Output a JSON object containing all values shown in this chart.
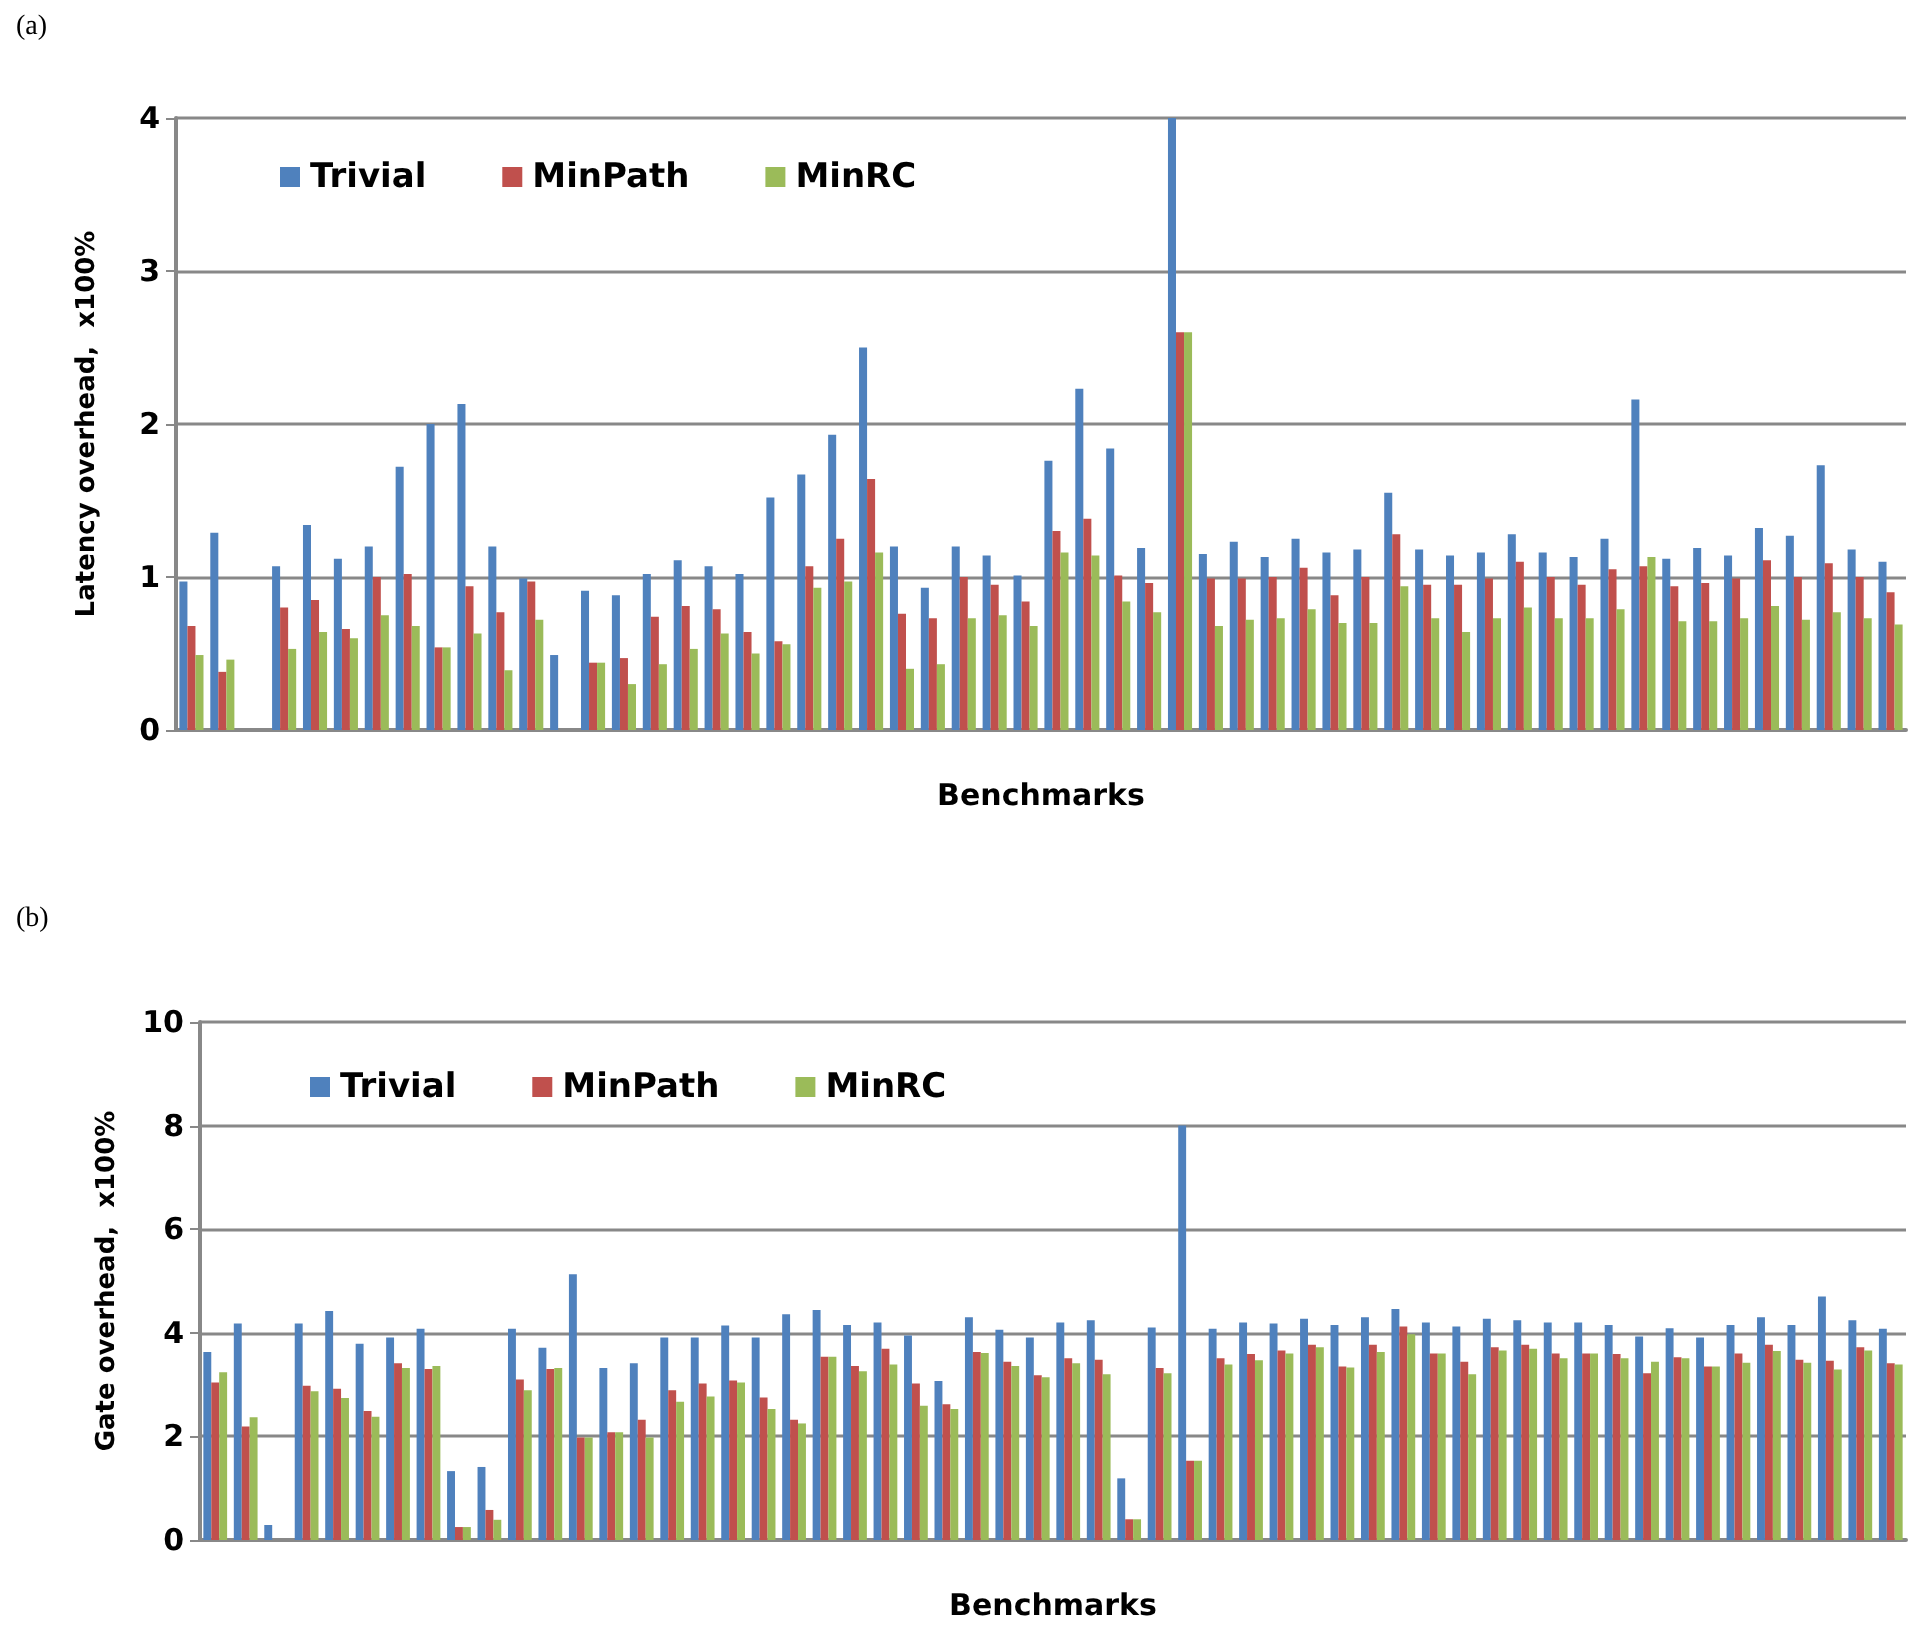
{
  "chart_data": [
    {
      "type": "bar",
      "annotations": [
        "(a)"
      ],
      "xlabel": "Benchmarks",
      "ylabel": "Latency overhead,  x100%",
      "categories": [
        null,
        null,
        null,
        null,
        null,
        null,
        null,
        null,
        null,
        null,
        null,
        null,
        null,
        null,
        null,
        null,
        null,
        null,
        null,
        null,
        null,
        null,
        null,
        null,
        null,
        null,
        null,
        null,
        null,
        null,
        null,
        null,
        null,
        null,
        null,
        null,
        null,
        null,
        null,
        null,
        null,
        null,
        null,
        null,
        null,
        null,
        null,
        null,
        null,
        null,
        null,
        null,
        null,
        null,
        null,
        null
      ],
      "ylim": [
        0,
        4
      ],
      "yticks": [
        0,
        1,
        2,
        3,
        4
      ],
      "grid": "y",
      "legend": "top left",
      "series": [
        {
          "name": "Trivial",
          "color": "#4f81bd",
          "values": [
            0.97,
            1.29,
            0,
            1.07,
            1.34,
            1.12,
            1.2,
            1.72,
            2.0,
            2.13,
            1.2,
            0.99,
            0.49,
            0.91,
            0.88,
            1.02,
            1.11,
            1.07,
            1.02,
            1.52,
            1.67,
            1.93,
            2.5,
            1.2,
            0.93,
            1.2,
            1.14,
            1.01,
            1.76,
            2.23,
            1.84,
            1.19,
            4.0,
            1.15,
            1.23,
            1.13,
            1.25,
            1.16,
            1.18,
            1.55,
            1.18,
            1.14,
            1.16,
            1.28,
            1.16,
            1.13,
            1.25,
            2.16,
            1.12,
            1.19,
            1.14,
            1.32,
            1.27,
            1.73,
            1.18,
            1.1
          ]
        },
        {
          "name": "MinPath",
          "color": "#c0504d",
          "values": [
            0.68,
            0.38,
            0,
            0.8,
            0.85,
            0.66,
            1.0,
            1.02,
            0.54,
            0.94,
            0.77,
            0.97,
            0,
            0.44,
            0.47,
            0.74,
            0.81,
            0.79,
            0.64,
            0.58,
            1.07,
            1.25,
            1.64,
            0.76,
            0.73,
            1.0,
            0.95,
            0.84,
            1.3,
            1.38,
            1.01,
            0.96,
            2.6,
            0.99,
            0.99,
            1.0,
            1.06,
            0.88,
            1.0,
            1.28,
            0.95,
            0.95,
            0.99,
            1.1,
            1.0,
            0.95,
            1.05,
            1.07,
            0.94,
            0.96,
            0.99,
            1.11,
            1.0,
            1.09,
            1.0,
            0.9
          ]
        },
        {
          "name": "MinRC",
          "color": "#9bbb59",
          "values": [
            0.49,
            0.46,
            0,
            0.53,
            0.64,
            0.6,
            0.75,
            0.68,
            0.54,
            0.63,
            0.39,
            0.72,
            0,
            0.44,
            0.3,
            0.43,
            0.53,
            0.63,
            0.5,
            0.56,
            0.93,
            0.97,
            1.16,
            0.4,
            0.43,
            0.73,
            0.75,
            0.68,
            1.16,
            1.14,
            0.84,
            0.77,
            2.6,
            0.68,
            0.72,
            0.73,
            0.79,
            0.7,
            0.7,
            0.94,
            0.73,
            0.64,
            0.73,
            0.8,
            0.73,
            0.73,
            0.79,
            1.13,
            0.71,
            0.71,
            0.73,
            0.81,
            0.72,
            0.77,
            0.73,
            0.69
          ]
        }
      ]
    },
    {
      "type": "bar",
      "annotations": [
        "(b)"
      ],
      "xlabel": "Benchmarks",
      "ylabel": "Gate overhead,  x100%",
      "categories": [
        null,
        null,
        null,
        null,
        null,
        null,
        null,
        null,
        null,
        null,
        null,
        null,
        null,
        null,
        null,
        null,
        null,
        null,
        null,
        null,
        null,
        null,
        null,
        null,
        null,
        null,
        null,
        null,
        null,
        null,
        null,
        null,
        null,
        null,
        null,
        null,
        null,
        null,
        null,
        null,
        null,
        null,
        null,
        null,
        null,
        null,
        null,
        null,
        null,
        null,
        null,
        null,
        null,
        null,
        null,
        null
      ],
      "ylim": [
        0,
        10
      ],
      "yticks": [
        0,
        2,
        4,
        6,
        8,
        10
      ],
      "grid": "y",
      "legend": "top left",
      "series": [
        {
          "name": "Trivial",
          "color": "#4f81bd",
          "values": [
            3.63,
            4.18,
            0.29,
            4.18,
            4.42,
            3.79,
            3.91,
            4.08,
            1.33,
            1.41,
            4.08,
            3.71,
            5.13,
            3.32,
            3.41,
            3.91,
            3.91,
            4.14,
            3.91,
            4.36,
            4.44,
            4.15,
            4.2,
            3.95,
            3.07,
            4.3,
            4.06,
            3.91,
            4.2,
            4.24,
            1.19,
            4.1,
            8.0,
            4.08,
            4.2,
            4.18,
            4.27,
            4.15,
            4.3,
            4.46,
            4.2,
            4.12,
            4.27,
            4.24,
            4.2,
            4.2,
            4.15,
            3.93,
            4.09,
            3.91,
            4.15,
            4.3,
            4.15,
            4.7,
            4.24,
            4.08
          ]
        },
        {
          "name": "MinPath",
          "color": "#c0504d",
          "values": [
            3.04,
            2.19,
            0,
            2.98,
            2.92,
            2.49,
            3.41,
            3.3,
            0.25,
            0.58,
            3.1,
            3.3,
            1.98,
            2.08,
            2.32,
            2.89,
            3.02,
            3.08,
            2.75,
            2.32,
            3.54,
            3.36,
            3.69,
            3.02,
            2.62,
            3.63,
            3.44,
            3.18,
            3.51,
            3.48,
            0.4,
            3.32,
            1.53,
            3.51,
            3.59,
            3.66,
            3.77,
            3.35,
            3.77,
            4.12,
            3.6,
            3.44,
            3.72,
            3.77,
            3.6,
            3.6,
            3.59,
            3.22,
            3.53,
            3.35,
            3.6,
            3.77,
            3.48,
            3.46,
            3.72,
            3.41
          ]
        },
        {
          "name": "MinRC",
          "color": "#9bbb59",
          "values": [
            3.24,
            2.37,
            0,
            2.87,
            2.74,
            2.38,
            3.32,
            3.36,
            0.25,
            0.39,
            2.89,
            3.32,
            1.98,
            2.08,
            1.98,
            2.67,
            2.77,
            3.04,
            2.53,
            2.25,
            3.54,
            3.26,
            3.39,
            2.59,
            2.53,
            3.61,
            3.36,
            3.14,
            3.41,
            3.2,
            0.4,
            3.22,
            1.53,
            3.39,
            3.47,
            3.6,
            3.72,
            3.33,
            3.63,
            3.97,
            3.6,
            3.2,
            3.66,
            3.69,
            3.51,
            3.6,
            3.51,
            3.44,
            3.51,
            3.35,
            3.42,
            3.65,
            3.42,
            3.29,
            3.66,
            3.39
          ]
        }
      ]
    }
  ]
}
